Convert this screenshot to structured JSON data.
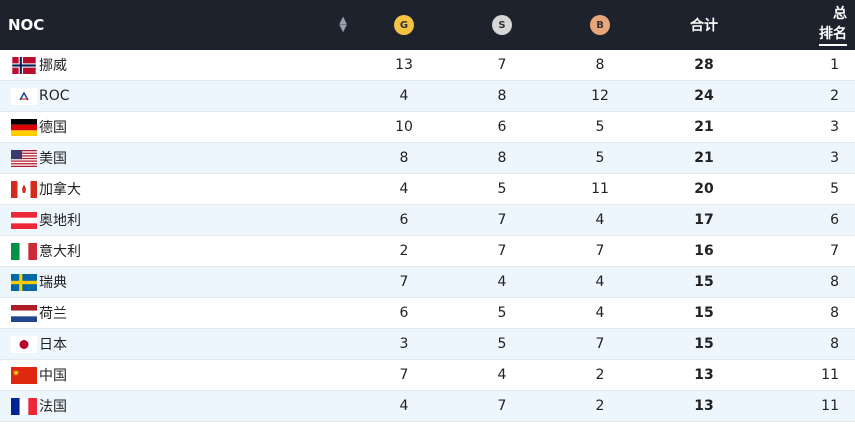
{
  "header": {
    "noc": "NOC",
    "gold_letter": "G",
    "silver_letter": "S",
    "bronze_letter": "B",
    "total": "合计",
    "rank_line1": "总",
    "rank_line2": "排名"
  },
  "colors": {
    "header_bg": "#1e222d",
    "gold": "#f5c242",
    "silver": "#d6d6d6",
    "bronze": "#e6a57a",
    "row_alt": "#eef6fd"
  },
  "rows": [
    {
      "country": "挪威",
      "flag": "norway-flag",
      "gold": "13",
      "silver": "7",
      "bronze": "8",
      "total": "28",
      "rank": "1"
    },
    {
      "country": "ROC",
      "flag": "roc-flag",
      "gold": "4",
      "silver": "8",
      "bronze": "12",
      "total": "24",
      "rank": "2"
    },
    {
      "country": "德国",
      "flag": "germany-flag",
      "gold": "10",
      "silver": "6",
      "bronze": "5",
      "total": "21",
      "rank": "3"
    },
    {
      "country": "美国",
      "flag": "usa-flag",
      "gold": "8",
      "silver": "8",
      "bronze": "5",
      "total": "21",
      "rank": "3"
    },
    {
      "country": "加拿大",
      "flag": "canada-flag",
      "gold": "4",
      "silver": "5",
      "bronze": "11",
      "total": "20",
      "rank": "5"
    },
    {
      "country": "奥地利",
      "flag": "austria-flag",
      "gold": "6",
      "silver": "7",
      "bronze": "4",
      "total": "17",
      "rank": "6"
    },
    {
      "country": "意大利",
      "flag": "italy-flag",
      "gold": "2",
      "silver": "7",
      "bronze": "7",
      "total": "16",
      "rank": "7"
    },
    {
      "country": "瑞典",
      "flag": "sweden-flag",
      "gold": "7",
      "silver": "4",
      "bronze": "4",
      "total": "15",
      "rank": "8"
    },
    {
      "country": "荷兰",
      "flag": "netherlands-flag",
      "gold": "6",
      "silver": "5",
      "bronze": "4",
      "total": "15",
      "rank": "8"
    },
    {
      "country": "日本",
      "flag": "japan-flag",
      "gold": "3",
      "silver": "5",
      "bronze": "7",
      "total": "15",
      "rank": "8"
    },
    {
      "country": "中国",
      "flag": "china-flag",
      "gold": "7",
      "silver": "4",
      "bronze": "2",
      "total": "13",
      "rank": "11"
    },
    {
      "country": "法国",
      "flag": "france-flag",
      "gold": "4",
      "silver": "7",
      "bronze": "2",
      "total": "13",
      "rank": "11"
    }
  ]
}
